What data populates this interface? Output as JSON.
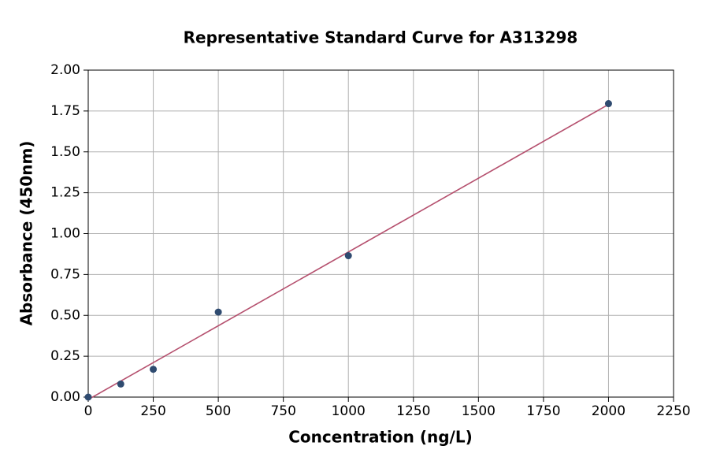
{
  "chart_data": {
    "type": "scatter",
    "title": "Representative Standard Curve for A313298",
    "x_label": "Concentration (ng/L)",
    "y_label": "Absorbance (450nm)",
    "points": {
      "x": [
        0,
        125,
        250,
        500,
        1000,
        2000
      ],
      "values": [
        0,
        0.08,
        0.17,
        0.52,
        0.865,
        1.795
      ],
      "color": "#2f4b70"
    },
    "fit_line": {
      "x": [
        0,
        2000
      ],
      "values": [
        -0.015,
        1.79
      ],
      "color": "#b5506e"
    },
    "xlim": [
      0,
      2250
    ],
    "xticks": [
      0,
      250,
      500,
      750,
      1000,
      1250,
      1500,
      1750,
      2000,
      2250
    ],
    "ylim": [
      0,
      2
    ],
    "yticks": [
      {
        "value": 0,
        "label": "0.00"
      },
      {
        "value": 0.25,
        "label": "0.25"
      },
      {
        "value": 0.5,
        "label": "0.50"
      },
      {
        "value": 0.75,
        "label": "0.75"
      },
      {
        "value": 1,
        "label": "1.00"
      },
      {
        "value": 1.25,
        "label": "1.25"
      },
      {
        "value": 1.5,
        "label": "1.50"
      },
      {
        "value": 1.75,
        "label": "1.75"
      },
      {
        "value": 2,
        "label": "2.00"
      }
    ],
    "grid": true
  }
}
